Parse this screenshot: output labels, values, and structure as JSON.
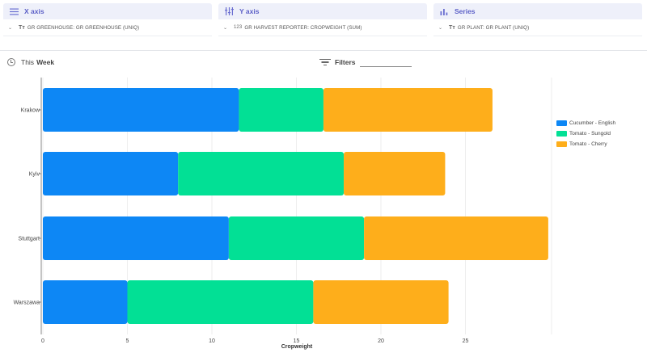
{
  "panels": [
    {
      "key": "x",
      "title": "X axis",
      "icon": "list-icon",
      "tt": "Tт",
      "num": "",
      "field": "GR GREENHOUSE: GR GREENHOUSE (UNIQ)"
    },
    {
      "key": "y",
      "title": "Y axis",
      "icon": "columns-icon",
      "tt": "",
      "num": "123",
      "field": "GR HARVEST REPORTER: CROPWEIGHT (SUM)"
    },
    {
      "key": "series",
      "title": "Series",
      "icon": "bar-chart-icon",
      "tt": "Tт",
      "num": "",
      "field": "GR PLANT: GR PLANT (UNIQ)"
    }
  ],
  "toolbar": {
    "period_prefix": "This",
    "period_bold": "Week",
    "filters_label": "Filters"
  },
  "colors": {
    "accent": "#5b5fc7",
    "panel_bg": "#eef0fa"
  },
  "chart_data": {
    "type": "bar",
    "orientation": "horizontal",
    "stacked": true,
    "categories": [
      "Krakow",
      "Kyiv",
      "Stuttgart",
      "Warszawa"
    ],
    "series": [
      {
        "name": "Cucumber - English",
        "color": "#0d87f5",
        "values": [
          11.6,
          8.0,
          11.0,
          5.0
        ]
      },
      {
        "name": "Tomato - Sungold",
        "color": "#02e095",
        "values": [
          5.0,
          9.8,
          8.0,
          11.0
        ]
      },
      {
        "name": "Tomato - Cherry",
        "color": "#feae1b",
        "values": [
          10.0,
          6.0,
          10.9,
          8.0
        ]
      }
    ],
    "xlabel": "Cropweight",
    "ylabel": "",
    "xlim": [
      0,
      30
    ],
    "xticks": [
      0,
      5,
      10,
      15,
      20,
      25
    ],
    "grid": true,
    "legend": "right"
  }
}
